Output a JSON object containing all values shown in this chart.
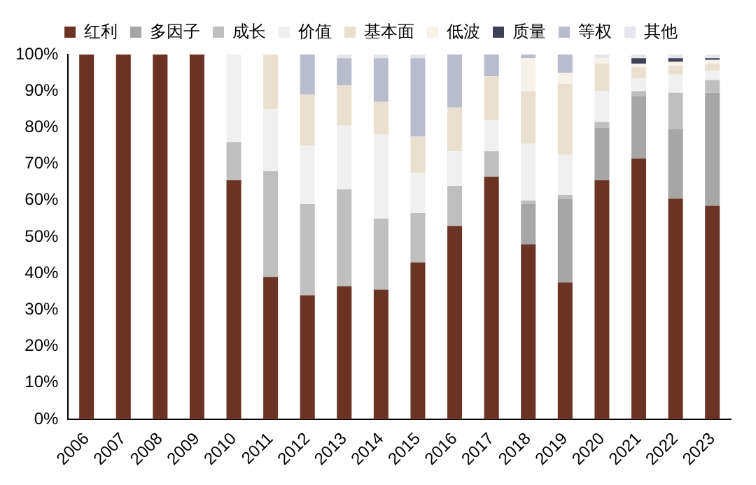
{
  "chart_data": {
    "type": "bar",
    "stacked": true,
    "legend": "top",
    "marker": "square",
    "grid": false,
    "categories": [
      "2006",
      "2007",
      "2008",
      "2009",
      "2010",
      "2011",
      "2012",
      "2013",
      "2014",
      "2015",
      "2016",
      "2017",
      "2018",
      "2019",
      "2020",
      "2021",
      "2022",
      "2023"
    ],
    "ylim": [
      0,
      100
    ],
    "yticks": [
      {
        "value": 0,
        "label": "0%"
      },
      {
        "value": 10,
        "label": "10%"
      },
      {
        "value": 20,
        "label": "20%"
      },
      {
        "value": 30,
        "label": "30%"
      },
      {
        "value": 40,
        "label": "40%"
      },
      {
        "value": 50,
        "label": "50%"
      },
      {
        "value": 60,
        "label": "60%"
      },
      {
        "value": 70,
        "label": "70%"
      },
      {
        "value": 80,
        "label": "80%"
      },
      {
        "value": 90,
        "label": "90%"
      },
      {
        "value": 100,
        "label": "100%"
      }
    ],
    "series": [
      {
        "name": "红利",
        "color": "#6b3324",
        "values": [
          100,
          100,
          100,
          100,
          65.5,
          39,
          34,
          36.5,
          35.5,
          43,
          53,
          66.5,
          48,
          37.5,
          65.5,
          71.5,
          60.5,
          58.5
        ]
      },
      {
        "name": "多因子",
        "color": "#a6a6a6",
        "values": [
          0,
          0,
          0,
          0,
          0,
          0,
          0,
          0,
          0,
          0,
          0,
          0,
          11,
          23,
          14.5,
          17,
          19,
          31
        ]
      },
      {
        "name": "成长",
        "color": "#bfbfbf",
        "values": [
          0,
          0,
          0,
          0,
          10.5,
          29,
          25,
          26.5,
          19.5,
          13.5,
          11,
          7,
          1,
          1,
          1.5,
          1.5,
          10,
          3.5
        ]
      },
      {
        "name": "价值",
        "color": "#f0f0f0",
        "values": [
          0,
          0,
          0,
          0,
          24,
          17,
          16,
          17.5,
          23,
          11,
          9.5,
          8.5,
          15.5,
          11,
          8.5,
          3.5,
          5,
          2.5
        ]
      },
      {
        "name": "基本面",
        "color": "#eae0cf",
        "values": [
          0,
          0,
          0,
          0,
          0,
          15,
          14,
          11,
          9,
          10,
          12,
          12,
          14.5,
          19.5,
          7.5,
          3,
          2.5,
          2
        ]
      },
      {
        "name": "低波",
        "color": "#f6f2ea",
        "values": [
          0,
          0,
          0,
          0,
          0,
          0,
          0,
          0,
          0,
          0,
          0,
          0,
          9,
          3,
          1.5,
          1,
          1,
          1
        ]
      },
      {
        "name": "质量",
        "color": "#3f4257",
        "values": [
          0,
          0,
          0,
          0,
          0,
          0,
          0,
          0,
          0,
          0,
          0,
          0,
          0,
          0,
          0,
          1.5,
          1,
          0.5
        ]
      },
      {
        "name": "等权",
        "color": "#b8bccb",
        "values": [
          0,
          0,
          0,
          0,
          0,
          0,
          11,
          7.5,
          12,
          21.5,
          14.5,
          6,
          1,
          5,
          0,
          0,
          0,
          0
        ]
      },
      {
        "name": "其他",
        "color": "#e4e6ec",
        "values": [
          0,
          0,
          0,
          0,
          0,
          0,
          0,
          1,
          1,
          1,
          0,
          0,
          0,
          0,
          1,
          1,
          1,
          1
        ]
      }
    ]
  }
}
